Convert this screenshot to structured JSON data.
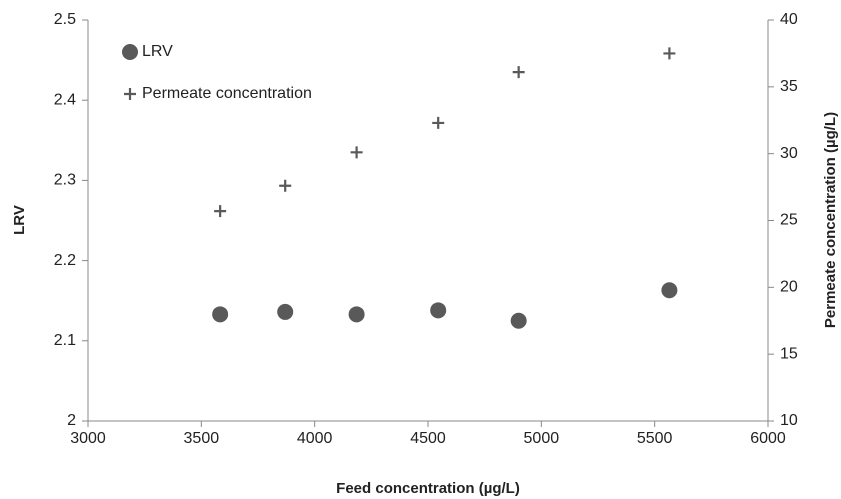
{
  "chart_data": {
    "type": "scatter",
    "x_label": "Feed concentration (µg/L)",
    "y_label": "LRV",
    "y2_label": "Permeate concentration (µg/L)",
    "x": [
      3583,
      3870,
      4185,
      4545,
      4900,
      5565
    ],
    "series": [
      {
        "name": "LRV",
        "color": "#595959",
        "marker": "circle",
        "values": [
          2.133,
          2.136,
          2.133,
          2.138,
          2.125,
          2.163
        ]
      },
      {
        "name": "Permeate concentration",
        "color": "#595959",
        "marker": "plus",
        "axis": "y2",
        "values": [
          25.7,
          27.6,
          30.1,
          32.3,
          36.1,
          37.5
        ]
      }
    ],
    "xlim": [
      3000,
      6000
    ],
    "xticks": [
      3000,
      3500,
      4000,
      4500,
      5000,
      5500,
      6000
    ],
    "ylim": [
      2,
      2.5
    ],
    "yticks": [
      2,
      2.1,
      2.2,
      2.3,
      2.4,
      2.5
    ],
    "y2lim": [
      10,
      40
    ],
    "y2ticks": [
      10,
      15,
      20,
      25,
      30,
      35,
      40
    ],
    "grid": false,
    "legend": "upper-left"
  }
}
